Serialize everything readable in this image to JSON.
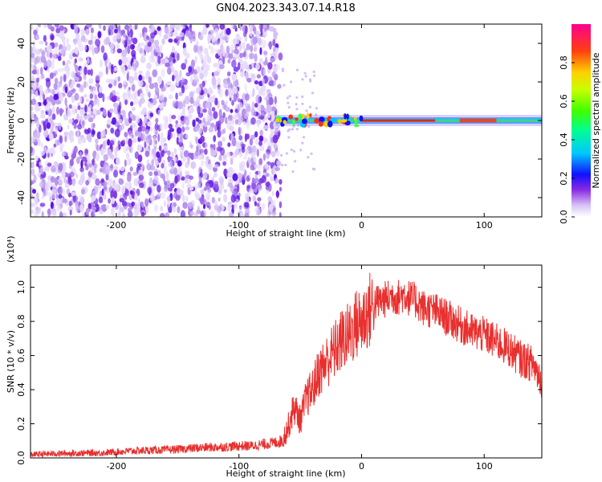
{
  "title": "GN04.2023.343.07.14.R18",
  "chart_data": [
    {
      "type": "heatmap",
      "xlabel": "Height of straight line (km)",
      "ylabel": "Frequency (Hz)",
      "xlim": [
        -270,
        147
      ],
      "ylim": [
        -50,
        50
      ],
      "xticks": [
        "-200",
        "-100",
        "0",
        "100"
      ],
      "yticks": [
        "-40",
        "-20",
        "0",
        "20",
        "40"
      ],
      "colorbar": {
        "label": "Normalized spectral amplitude",
        "range": [
          0,
          1
        ],
        "ticks": [
          "0.0",
          "0.2",
          "0.4",
          "0.6",
          "0.8"
        ]
      },
      "noise_region_km": [
        -270,
        -66
      ],
      "signal": {
        "center_hz": 0,
        "band_start_km": -70,
        "band_end_km": 147
      }
    },
    {
      "type": "line",
      "xlabel": "Height of straight line (km)",
      "ylabel": "SNR (10 * v/v)",
      "y_multiplier": "(x10⁴)",
      "xlim": [
        -270,
        147
      ],
      "ylim": [
        0,
        1.13
      ],
      "xticks": [
        "-200",
        "-100",
        "0",
        "100"
      ],
      "yticks": [
        "0.0",
        "0.2",
        "0.4",
        "0.6",
        "0.8",
        "1.0"
      ],
      "color": "#e8302e",
      "series": [
        {
          "x": [
            -270,
            -250,
            -230,
            -210,
            -200,
            -190,
            -170,
            -150,
            -130,
            -110,
            -100,
            -90,
            -80,
            -70,
            -65,
            -60,
            -55,
            -50,
            -45,
            -40,
            -35,
            -30,
            -25,
            -20,
            -15,
            -10,
            -5,
            0,
            5,
            10,
            15,
            20,
            25,
            30,
            35,
            40,
            45,
            50,
            60,
            70,
            80,
            90,
            100,
            110,
            120,
            130,
            140,
            147
          ],
          "y": [
            0.02,
            0.025,
            0.028,
            0.03,
            0.035,
            0.04,
            0.045,
            0.05,
            0.06,
            0.065,
            0.07,
            0.07,
            0.08,
            0.09,
            0.1,
            0.18,
            0.3,
            0.22,
            0.35,
            0.4,
            0.5,
            0.55,
            0.6,
            0.65,
            0.7,
            0.72,
            0.78,
            0.8,
            0.85,
            0.9,
            0.92,
            0.93,
            0.95,
            0.94,
            0.96,
            0.93,
            0.92,
            0.88,
            0.86,
            0.82,
            0.78,
            0.74,
            0.72,
            0.68,
            0.64,
            0.58,
            0.55,
            0.45
          ]
        }
      ]
    }
  ]
}
